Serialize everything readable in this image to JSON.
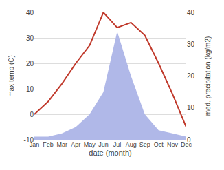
{
  "chart_data": {
    "type": "line",
    "categories": [
      "Jan",
      "Feb",
      "Mar",
      "Apr",
      "May",
      "Jun",
      "Jul",
      "Aug",
      "Sep",
      "Oct",
      "Nov",
      "Dec"
    ],
    "xlabel": "date (month)",
    "ylabel": "max temp (C)",
    "y2label": "med. precipitation (kg/m2)",
    "series": [
      {
        "type": "area",
        "axis": "y2",
        "color": "#b0b8e8",
        "values": [
          1,
          1,
          2,
          4,
          8,
          15,
          34,
          20,
          8,
          3,
          2,
          1
        ]
      },
      {
        "type": "line",
        "color": "#c0392b",
        "values": [
          0,
          5,
          12,
          20,
          27,
          40,
          34,
          36,
          31,
          20,
          8,
          -5
        ]
      }
    ],
    "ylim": [
      -10,
      40
    ],
    "yticks": [
      -10,
      0,
      10,
      20,
      30,
      40
    ],
    "y2lim": [
      0,
      40
    ],
    "y2ticks": [
      0,
      10,
      20,
      30,
      40
    ],
    "grid": true
  }
}
